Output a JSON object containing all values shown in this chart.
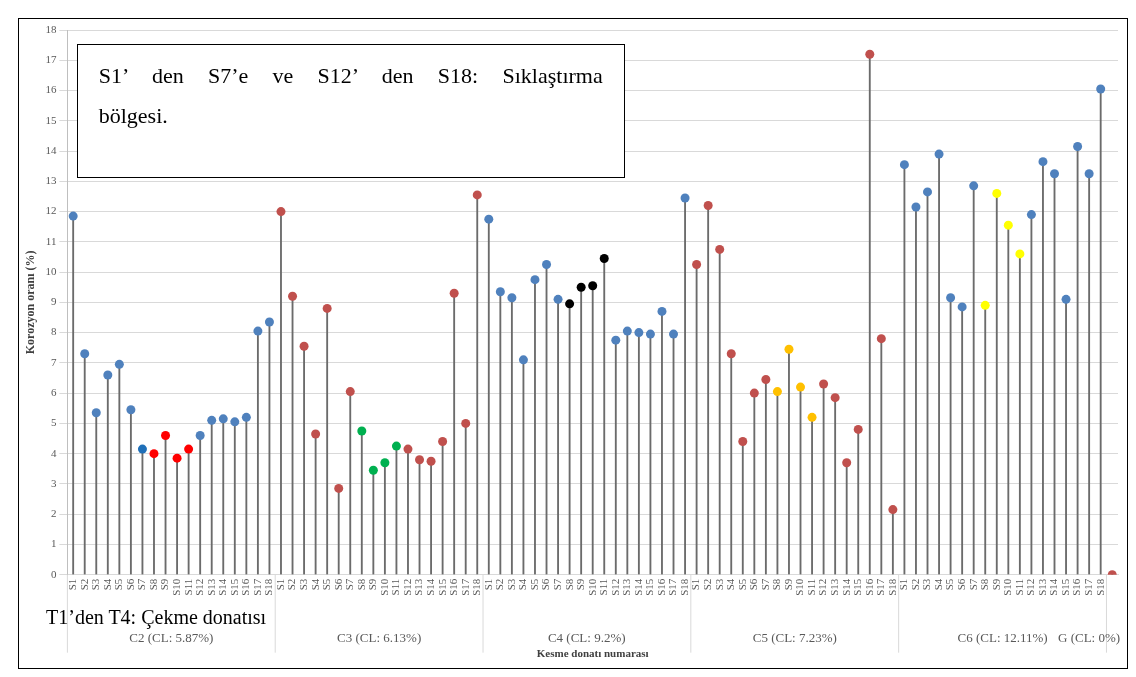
{
  "chart_data": {
    "type": "lollipop",
    "ylabel": "Korozyon oranı (%)",
    "xlabel": "Kesme donatı numarası",
    "categories": [
      "S1",
      "S2",
      "S3",
      "S4",
      "S5",
      "S6",
      "S7",
      "S8",
      "S9",
      "S10",
      "S11",
      "S12",
      "S13",
      "S14",
      "S15",
      "S16",
      "S17",
      "S18",
      "S1",
      "S2",
      "S3",
      "S4",
      "S5",
      "S6",
      "S7",
      "S8",
      "S9",
      "S10",
      "S11",
      "S12",
      "S13",
      "S14",
      "S15",
      "S16",
      "S17",
      "S18",
      "S1",
      "S2",
      "S3",
      "S4",
      "S5",
      "S6",
      "S7",
      "S8",
      "S9",
      "S10",
      "S11",
      "S12",
      "S13",
      "S14",
      "S15",
      "S16",
      "S17",
      "S18",
      "S1",
      "S2",
      "S3",
      "S4",
      "S5",
      "S6",
      "S7",
      "S8",
      "S9",
      "S10",
      "S11",
      "S12",
      "S13",
      "S14",
      "S15",
      "S16",
      "S17",
      "S18",
      "S1",
      "S2",
      "S3",
      "S4",
      "S5",
      "S6",
      "S7",
      "S8",
      "S9",
      "S10",
      "S11",
      "S12",
      "S13",
      "S14",
      "S15",
      "S16",
      "S17",
      "S18",
      null
    ],
    "values": [
      11.85,
      7.3,
      5.35,
      6.6,
      6.95,
      5.45,
      4.15,
      4.0,
      4.6,
      3.85,
      4.15,
      4.6,
      5.1,
      5.15,
      5.05,
      5.2,
      8.05,
      8.35,
      12.0,
      9.2,
      7.55,
      4.65,
      8.8,
      2.85,
      6.05,
      4.75,
      3.45,
      3.7,
      4.25,
      4.15,
      3.8,
      3.75,
      4.4,
      9.3,
      5.0,
      12.55,
      11.75,
      9.35,
      9.15,
      7.1,
      9.75,
      10.25,
      9.1,
      8.95,
      9.5,
      9.55,
      10.45,
      7.75,
      8.05,
      8.0,
      7.95,
      8.7,
      7.95,
      12.45,
      10.25,
      12.2,
      10.75,
      7.3,
      4.4,
      6.0,
      6.45,
      6.05,
      7.45,
      6.2,
      5.2,
      6.3,
      5.85,
      3.7,
      4.8,
      17.2,
      7.8,
      2.15,
      13.55,
      12.15,
      12.65,
      13.9,
      9.15,
      8.85,
      12.85,
      8.9,
      12.6,
      11.55,
      10.6,
      11.9,
      13.65,
      13.25,
      9.1,
      14.15,
      13.25,
      16.05,
      0
    ],
    "colors": [
      "#4f81bd",
      "#4f81bd",
      "#4f81bd",
      "#4f81bd",
      "#4f81bd",
      "#4f81bd",
      "#1f6fb8",
      "#ff0000",
      "#ff0000",
      "#ff0000",
      "#ff0000",
      "#4f81bd",
      "#4f81bd",
      "#4f81bd",
      "#4f81bd",
      "#4f81bd",
      "#4f81bd",
      "#4f81bd",
      "#c0504d",
      "#c0504d",
      "#c0504d",
      "#c0504d",
      "#c0504d",
      "#c0504d",
      "#c0504d",
      "#00b050",
      "#00b050",
      "#00b050",
      "#00b050",
      "#c0504d",
      "#c0504d",
      "#c0504d",
      "#c0504d",
      "#c0504d",
      "#c0504d",
      "#c0504d",
      "#4f81bd",
      "#4f81bd",
      "#4f81bd",
      "#4f81bd",
      "#4f81bd",
      "#4f81bd",
      "#4f81bd",
      "#000000",
      "#000000",
      "#000000",
      "#000000",
      "#4f81bd",
      "#4f81bd",
      "#4f81bd",
      "#4f81bd",
      "#4f81bd",
      "#4f81bd",
      "#4f81bd",
      "#c0504d",
      "#c0504d",
      "#c0504d",
      "#c0504d",
      "#c0504d",
      "#c0504d",
      "#c0504d",
      "#ffc000",
      "#ffc000",
      "#ffc000",
      "#ffc000",
      "#c0504d",
      "#c0504d",
      "#c0504d",
      "#c0504d",
      "#c0504d",
      "#c0504d",
      "#c0504d",
      "#4f81bd",
      "#4f81bd",
      "#4f81bd",
      "#4f81bd",
      "#4f81bd",
      "#4f81bd",
      "#4f81bd",
      "#ffff00",
      "#ffff00",
      "#ffff00",
      "#ffff00",
      "#4f81bd",
      "#4f81bd",
      "#4f81bd",
      "#4f81bd",
      "#4f81bd",
      "#4f81bd",
      "#4f81bd",
      "#c0504d"
    ],
    "ylim": [
      0,
      18
    ],
    "yticks": [
      0,
      1,
      2,
      3,
      4,
      5,
      6,
      7,
      8,
      9,
      10,
      11,
      12,
      13,
      14,
      15,
      16,
      17,
      18
    ],
    "grid": "y",
    "marker": "circle",
    "legend": false,
    "annotations": [
      "S1’ den S7’e ve S12’ den S18: Sıklaştırma bölgesi.",
      "T1’den T4: Çekme donatısı",
      "C2 (CL: 5.87%)",
      "C3 (CL: 6.13%)",
      "C4 (CL: 9.2%)",
      "C5 (CL: 7.23%)",
      "C6 (CL: 12.11%)",
      "G (CL: 0%)"
    ]
  }
}
